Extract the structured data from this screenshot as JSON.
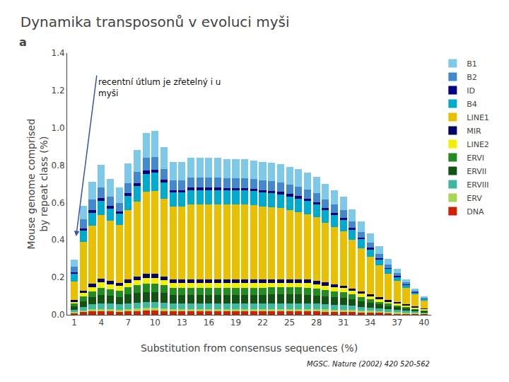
{
  "chart_data": {
    "type": "bar",
    "stacked": true,
    "title": "Dynamika transposonů v evoluci myši",
    "xlabel": "Substitution from consensus sequences (%)",
    "ylabel": "Mouse genome comprised\nby repeat class (%)",
    "annotations": [
      "a",
      "recentní útlum je zřetelný i u\nmyši",
      "MGSC. Nature (2002) 420 520-562"
    ],
    "x": [
      1,
      2,
      3,
      4,
      5,
      6,
      7,
      8,
      9,
      10,
      11,
      12,
      13,
      14,
      15,
      16,
      17,
      18,
      19,
      20,
      21,
      22,
      23,
      24,
      25,
      26,
      27,
      28,
      29,
      30,
      31,
      32,
      33,
      34,
      35,
      36,
      37,
      38,
      39,
      40
    ],
    "series": [
      {
        "name": "DNA",
        "color": "#cc2200",
        "values": [
          0.01,
          0.015,
          0.02,
          0.02,
          0.018,
          0.016,
          0.018,
          0.02,
          0.022,
          0.022,
          0.02,
          0.018,
          0.018,
          0.018,
          0.018,
          0.018,
          0.018,
          0.018,
          0.018,
          0.018,
          0.018,
          0.018,
          0.018,
          0.018,
          0.018,
          0.018,
          0.018,
          0.018,
          0.016,
          0.016,
          0.015,
          0.014,
          0.013,
          0.012,
          0.01,
          0.008,
          0.007,
          0.006,
          0.005,
          0.004
        ]
      },
      {
        "name": "ERV",
        "color": "#aad454",
        "values": [
          0.005,
          0.008,
          0.01,
          0.012,
          0.012,
          0.012,
          0.012,
          0.014,
          0.015,
          0.015,
          0.014,
          0.013,
          0.013,
          0.013,
          0.013,
          0.013,
          0.013,
          0.013,
          0.013,
          0.013,
          0.013,
          0.013,
          0.014,
          0.014,
          0.014,
          0.014,
          0.014,
          0.013,
          0.013,
          0.012,
          0.012,
          0.011,
          0.01,
          0.009,
          0.008,
          0.008,
          0.007,
          0.007,
          0.006,
          0.005
        ]
      },
      {
        "name": "ERVIII",
        "color": "#3cb8a0",
        "values": [
          0.012,
          0.02,
          0.025,
          0.03,
          0.03,
          0.028,
          0.03,
          0.032,
          0.033,
          0.033,
          0.032,
          0.03,
          0.03,
          0.03,
          0.03,
          0.03,
          0.03,
          0.03,
          0.03,
          0.03,
          0.03,
          0.03,
          0.03,
          0.03,
          0.03,
          0.03,
          0.03,
          0.028,
          0.028,
          0.026,
          0.025,
          0.023,
          0.02,
          0.018,
          0.015,
          0.013,
          0.012,
          0.01,
          0.008,
          0.006
        ]
      },
      {
        "name": "ERVII",
        "color": "#145214",
        "values": [
          0.018,
          0.03,
          0.038,
          0.045,
          0.042,
          0.04,
          0.048,
          0.05,
          0.052,
          0.052,
          0.05,
          0.046,
          0.046,
          0.046,
          0.046,
          0.046,
          0.046,
          0.046,
          0.046,
          0.046,
          0.046,
          0.046,
          0.046,
          0.046,
          0.046,
          0.046,
          0.045,
          0.044,
          0.042,
          0.04,
          0.038,
          0.034,
          0.03,
          0.026,
          0.022,
          0.018,
          0.015,
          0.012,
          0.009,
          0.007
        ]
      },
      {
        "name": "ERVI",
        "color": "#228B22",
        "values": [
          0.015,
          0.025,
          0.03,
          0.038,
          0.036,
          0.034,
          0.038,
          0.042,
          0.045,
          0.045,
          0.042,
          0.038,
          0.038,
          0.038,
          0.038,
          0.038,
          0.038,
          0.038,
          0.038,
          0.038,
          0.038,
          0.038,
          0.038,
          0.038,
          0.038,
          0.038,
          0.037,
          0.036,
          0.034,
          0.032,
          0.03,
          0.026,
          0.022,
          0.018,
          0.015,
          0.012,
          0.01,
          0.008,
          0.006,
          0.004
        ]
      },
      {
        "name": "LINE2",
        "color": "#f0f000",
        "values": [
          0.01,
          0.018,
          0.025,
          0.028,
          0.026,
          0.024,
          0.026,
          0.028,
          0.03,
          0.03,
          0.028,
          0.026,
          0.026,
          0.026,
          0.026,
          0.026,
          0.026,
          0.026,
          0.026,
          0.026,
          0.026,
          0.026,
          0.026,
          0.026,
          0.026,
          0.026,
          0.026,
          0.025,
          0.024,
          0.023,
          0.022,
          0.02,
          0.018,
          0.016,
          0.014,
          0.012,
          0.01,
          0.009,
          0.007,
          0.005
        ]
      },
      {
        "name": "MIR",
        "color": "#000066",
        "values": [
          0.008,
          0.014,
          0.018,
          0.02,
          0.018,
          0.016,
          0.018,
          0.02,
          0.022,
          0.022,
          0.02,
          0.018,
          0.018,
          0.018,
          0.018,
          0.018,
          0.018,
          0.018,
          0.018,
          0.018,
          0.018,
          0.018,
          0.018,
          0.018,
          0.018,
          0.018,
          0.018,
          0.017,
          0.016,
          0.015,
          0.015,
          0.013,
          0.012,
          0.01,
          0.009,
          0.007,
          0.006,
          0.005,
          0.004,
          0.003
        ]
      },
      {
        "name": "LINE1",
        "color": "#e8c000",
        "values": [
          0.1,
          0.26,
          0.31,
          0.34,
          0.32,
          0.31,
          0.37,
          0.4,
          0.44,
          0.445,
          0.415,
          0.39,
          0.39,
          0.4,
          0.4,
          0.4,
          0.4,
          0.4,
          0.4,
          0.4,
          0.398,
          0.39,
          0.385,
          0.38,
          0.37,
          0.36,
          0.35,
          0.34,
          0.32,
          0.305,
          0.29,
          0.26,
          0.23,
          0.2,
          0.17,
          0.14,
          0.115,
          0.088,
          0.065,
          0.045
        ]
      },
      {
        "name": "B4",
        "color": "#00aacc",
        "values": [
          0.04,
          0.06,
          0.07,
          0.075,
          0.065,
          0.06,
          0.075,
          0.082,
          0.095,
          0.095,
          0.085,
          0.075,
          0.075,
          0.078,
          0.078,
          0.078,
          0.078,
          0.076,
          0.076,
          0.076,
          0.075,
          0.075,
          0.075,
          0.074,
          0.073,
          0.072,
          0.071,
          0.069,
          0.067,
          0.065,
          0.06,
          0.054,
          0.048,
          0.042,
          0.035,
          0.028,
          0.022,
          0.016,
          0.011,
          0.007
        ]
      },
      {
        "name": "ID",
        "color": "#000080",
        "values": [
          0.008,
          0.012,
          0.015,
          0.016,
          0.014,
          0.012,
          0.014,
          0.015,
          0.017,
          0.017,
          0.015,
          0.013,
          0.013,
          0.013,
          0.013,
          0.013,
          0.013,
          0.013,
          0.013,
          0.013,
          0.013,
          0.013,
          0.013,
          0.013,
          0.013,
          0.013,
          0.012,
          0.012,
          0.011,
          0.011,
          0.01,
          0.009,
          0.008,
          0.007,
          0.006,
          0.005,
          0.004,
          0.003,
          0.002,
          0.001
        ]
      },
      {
        "name": "B2",
        "color": "#4488cc",
        "values": [
          0.03,
          0.05,
          0.055,
          0.058,
          0.05,
          0.046,
          0.055,
          0.06,
          0.068,
          0.068,
          0.06,
          0.053,
          0.053,
          0.055,
          0.055,
          0.055,
          0.055,
          0.054,
          0.054,
          0.054,
          0.053,
          0.053,
          0.053,
          0.052,
          0.052,
          0.051,
          0.05,
          0.049,
          0.046,
          0.044,
          0.042,
          0.037,
          0.033,
          0.028,
          0.023,
          0.018,
          0.014,
          0.01,
          0.007,
          0.005
        ]
      },
      {
        "name": "B1",
        "color": "#7ec8e8",
        "values": [
          0.04,
          0.072,
          0.095,
          0.12,
          0.095,
          0.082,
          0.105,
          0.12,
          0.135,
          0.138,
          0.115,
          0.096,
          0.096,
          0.105,
          0.105,
          0.105,
          0.105,
          0.1,
          0.1,
          0.1,
          0.098,
          0.098,
          0.097,
          0.096,
          0.094,
          0.092,
          0.09,
          0.086,
          0.082,
          0.078,
          0.072,
          0.064,
          0.056,
          0.048,
          0.039,
          0.03,
          0.023,
          0.016,
          0.011,
          0.007
        ]
      }
    ],
    "xlim": [
      0.2,
      40.8
    ],
    "xticks": [
      1,
      4,
      7,
      10,
      13,
      16,
      19,
      22,
      25,
      28,
      31,
      34,
      37,
      40
    ],
    "ylim": [
      0,
      1.4
    ],
    "yticks": [
      {
        "value": 0,
        "label": "0.0"
      },
      0.2,
      0.4,
      0.6,
      0.8,
      {
        "value": 1,
        "label": "1.0"
      },
      1.2,
      1.4
    ],
    "grid": false,
    "legend": "upper right"
  }
}
